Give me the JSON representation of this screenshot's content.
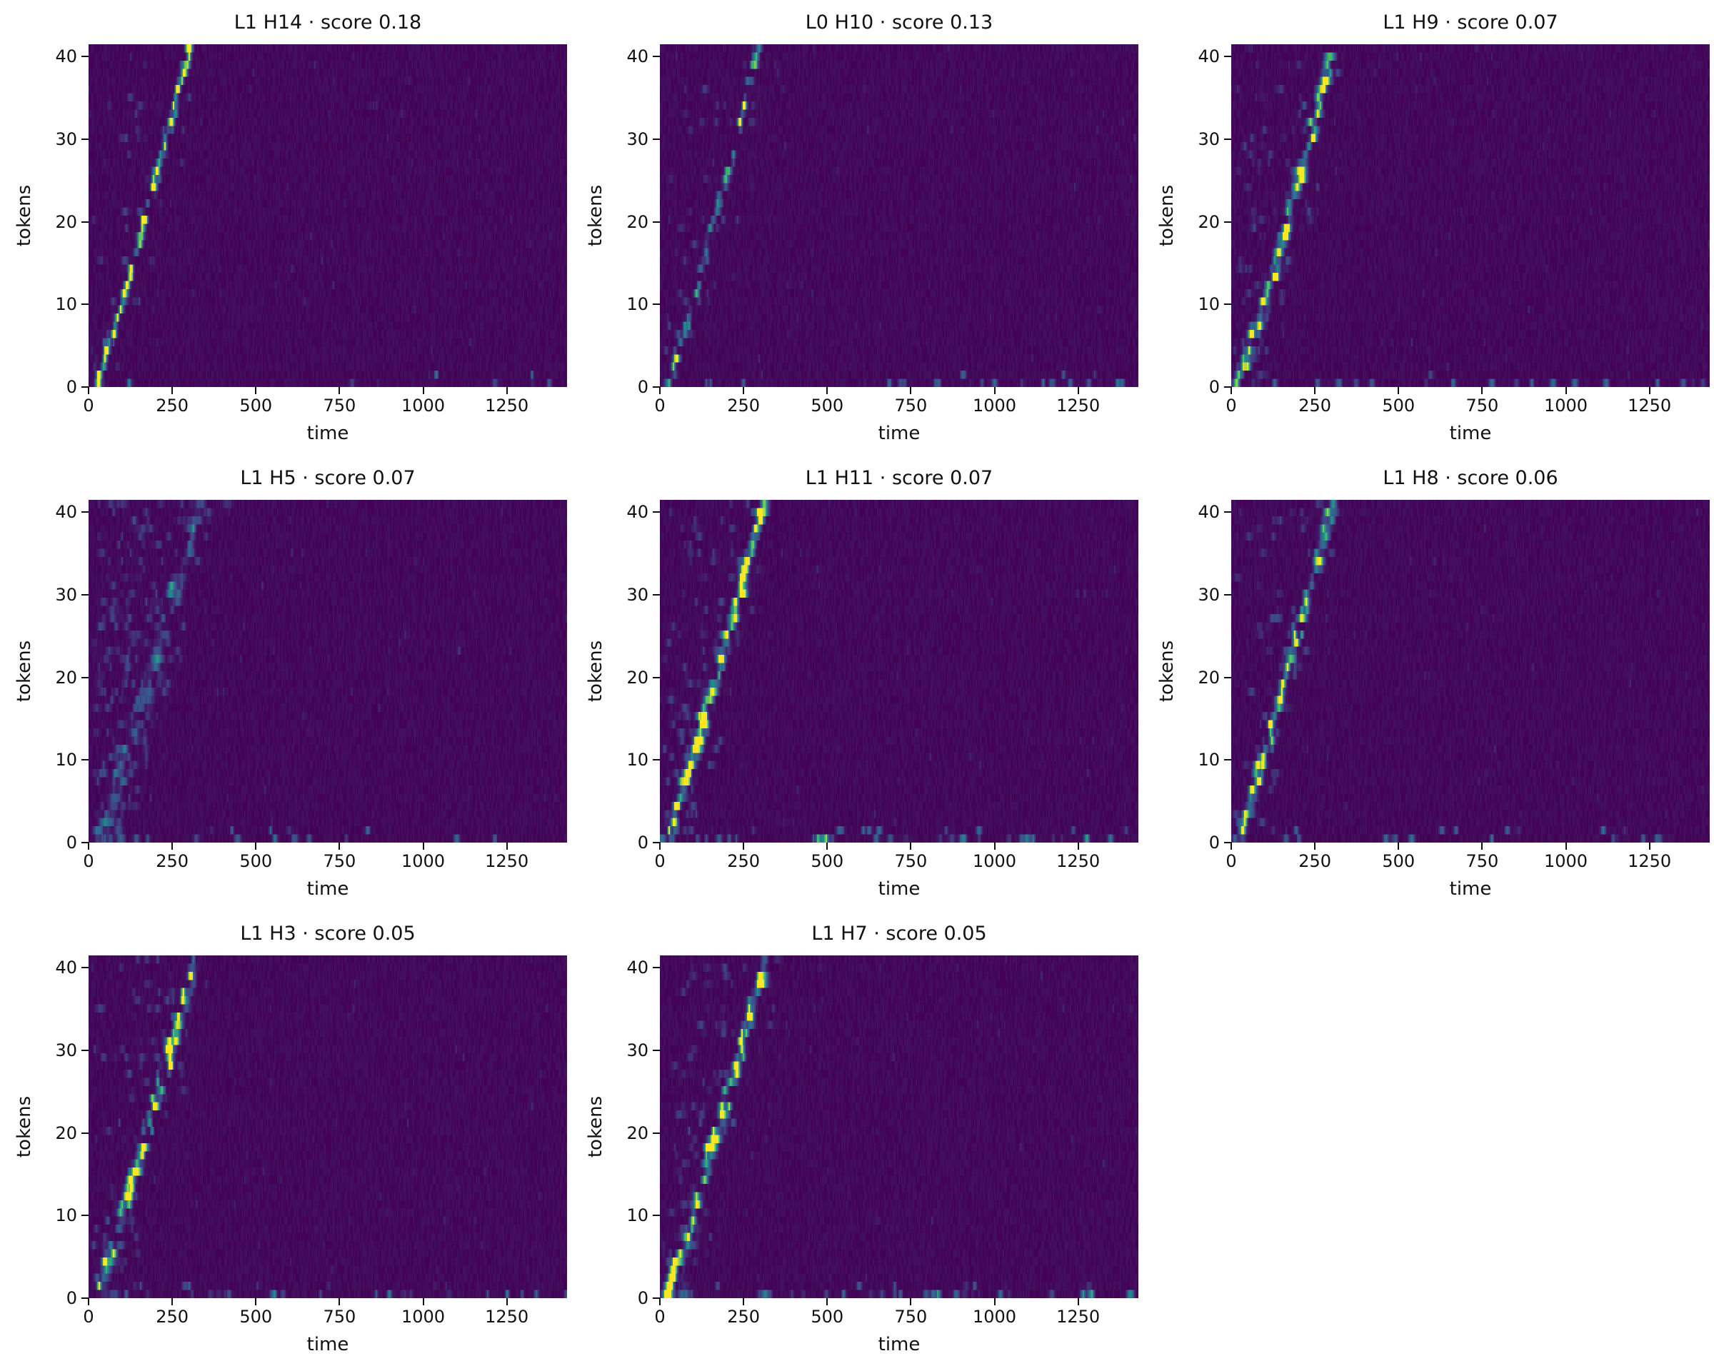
{
  "figure": {
    "background_color": "#ffffff",
    "description": "Grid of attention-alignment heatmaps per layer/head, tokens vs time"
  },
  "chart_data": {
    "type": "heatmap",
    "layout": {
      "columns": 3,
      "rows": 3,
      "panel_count": 8,
      "legend": "none",
      "grid": "off"
    },
    "colormap": "viridis",
    "colormap_low_color": "#440154",
    "colormap_high_color": "#fde725",
    "xlabel": "time",
    "ylabel": "tokens",
    "x_range": [
      0,
      1430
    ],
    "y_range": [
      0,
      41.5
    ],
    "x_ticks": [
      {
        "label": "0",
        "value": 0
      },
      {
        "label": "250",
        "value": 250
      },
      {
        "label": "500",
        "value": 500
      },
      {
        "label": "750",
        "value": 750
      },
      {
        "label": "1000",
        "value": 1000
      },
      {
        "label": "1250",
        "value": 1250
      }
    ],
    "y_ticks": [
      {
        "label": "0",
        "value": 0
      },
      {
        "label": "10",
        "value": 10
      },
      {
        "label": "20",
        "value": 20
      },
      {
        "label": "30",
        "value": 30
      },
      {
        "label": "40",
        "value": 40
      }
    ],
    "panels": [
      {
        "title": "L1 H14 · score 0.18",
        "layer": "L1",
        "head": "H14",
        "score": 0.18,
        "pattern": {
          "description": "sharp thin diagonal ridge from token 0 at time ~25 to token 40 at time ~300",
          "ridge_start_time": 25,
          "ridge_end_time": 300,
          "brightness": 0.8,
          "diffuseness": 0.7,
          "scatter": 0.25,
          "bottom_speckle": 0.15,
          "row_gap": 0.12
        }
      },
      {
        "title": "L0 H10 · score 0.13",
        "layer": "L0",
        "head": "H10",
        "score": 0.13,
        "pattern": {
          "description": "sparse dotted diagonal ridge reaching token 40 near time ~290",
          "ridge_start_time": 25,
          "ridge_end_time": 290,
          "brightness": 0.55,
          "diffuseness": 0.8,
          "scatter": 0.3,
          "bottom_speckle": 0.45,
          "row_gap": 0.38
        }
      },
      {
        "title": "L1 H9 · score 0.07",
        "layer": "L1",
        "head": "H9",
        "score": 0.07,
        "pattern": {
          "description": "broad speckled diagonal ridge reaching token 40 near time ~305",
          "ridge_start_time": 20,
          "ridge_end_time": 305,
          "brightness": 0.8,
          "diffuseness": 1.4,
          "scatter": 0.6,
          "bottom_speckle": 0.35,
          "row_gap": 0.08
        }
      },
      {
        "title": "L1 H5 · score 0.07",
        "layer": "L1",
        "head": "H5",
        "score": 0.07,
        "pattern": {
          "description": "very faint diffuse diagonal band with widespread dim scatter",
          "ridge_start_time": 25,
          "ridge_end_time": 330,
          "brightness": 0.3,
          "diffuseness": 2.2,
          "scatter": 1.6,
          "bottom_speckle": 0.4,
          "row_gap": 0.3
        }
      },
      {
        "title": "L1 H11 · score 0.07",
        "layer": "L1",
        "head": "H11",
        "score": 0.07,
        "pattern": {
          "description": "bright speckled diagonal ridge with bottom-row activity across full time range",
          "ridge_start_time": 15,
          "ridge_end_time": 310,
          "brightness": 0.95,
          "diffuseness": 1.5,
          "scatter": 0.7,
          "bottom_speckle": 0.9,
          "row_gap": 0.05
        }
      },
      {
        "title": "L1 H8 · score 0.06",
        "layer": "L1",
        "head": "H8",
        "score": 0.06,
        "pattern": {
          "description": "speckled diagonal ridge reaching token 40 near time ~300",
          "ridge_start_time": 20,
          "ridge_end_time": 300,
          "brightness": 0.75,
          "diffuseness": 1.3,
          "scatter": 0.45,
          "bottom_speckle": 0.4,
          "row_gap": 0.1
        }
      },
      {
        "title": "L1 H3 · score 0.05",
        "layer": "L1",
        "head": "H3",
        "score": 0.05,
        "pattern": {
          "description": "speckled diagonal ridge reaching token 40 near time ~320",
          "ridge_start_time": 20,
          "ridge_end_time": 320,
          "brightness": 0.8,
          "diffuseness": 1.5,
          "scatter": 0.6,
          "bottom_speckle": 0.6,
          "row_gap": 0.08
        }
      },
      {
        "title": "L1 H7 · score 0.05",
        "layer": "L1",
        "head": "H7",
        "score": 0.05,
        "pattern": {
          "description": "bright speckled diagonal ridge with bottom-row activity",
          "ridge_start_time": 15,
          "ridge_end_time": 315,
          "brightness": 0.9,
          "diffuseness": 1.6,
          "scatter": 0.7,
          "bottom_speckle": 0.75,
          "row_gap": 0.06
        }
      }
    ]
  }
}
